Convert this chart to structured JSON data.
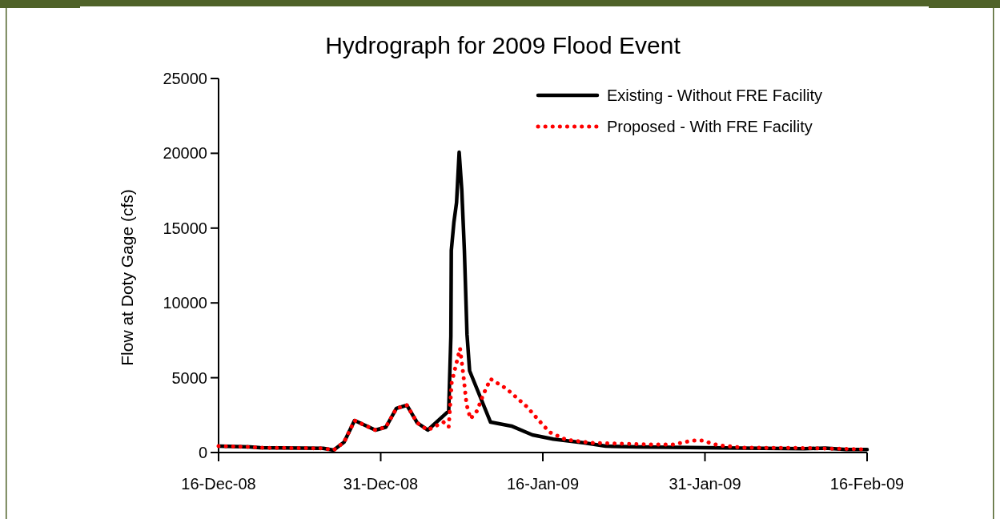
{
  "chart_data": {
    "type": "line",
    "title": "Hydrograph for 2009 Flood Event",
    "ylabel": "Flow at Doty Gage (cfs)",
    "xlim": [
      "2008-12-16",
      "2009-02-16"
    ],
    "xticks": [
      {
        "value": "2008-12-16",
        "label": "16-Dec-08"
      },
      {
        "value": "2008-12-31T12:00",
        "label": "31-Dec-08"
      },
      {
        "value": "2009-01-16",
        "label": "16-Jan-09"
      },
      {
        "value": "2009-01-31T12:00",
        "label": "31-Jan-09"
      },
      {
        "value": "2009-02-16",
        "label": "16-Feb-09"
      }
    ],
    "ylim": [
      0,
      25000
    ],
    "yticks": [
      0,
      5000,
      10000,
      15000,
      20000,
      25000
    ],
    "grid": false,
    "legend": "top right",
    "series": [
      {
        "name": "Existing - Without FRE Facility",
        "color": "#000000",
        "line_style": "solid",
        "x": [
          "2008-12-16",
          "2008-12-19",
          "2008-12-20",
          "2008-12-26",
          "2008-12-27",
          "2008-12-28",
          "2008-12-29",
          "2008-12-31",
          "2009-01-01",
          "2009-01-02",
          "2009-01-03",
          "2009-01-04",
          "2009-01-05",
          "2009-01-07",
          "2009-01-07T05:00",
          "2009-01-07T06:00",
          "2009-01-07T12:00",
          "2009-01-07T18:00",
          "2009-01-08",
          "2009-01-08T06:00",
          "2009-01-08T12:00",
          "2009-01-08T18:00",
          "2009-01-09",
          "2009-01-11",
          "2009-01-13",
          "2009-01-15",
          "2009-01-17",
          "2009-01-20",
          "2009-01-22",
          "2009-01-25",
          "2009-02-04",
          "2009-02-10",
          "2009-02-12",
          "2009-02-14",
          "2009-02-16"
        ],
        "values": [
          430,
          370,
          320,
          280,
          160,
          700,
          2140,
          1500,
          1700,
          2950,
          3160,
          1980,
          1500,
          2780,
          7760,
          13500,
          15400,
          16700,
          20070,
          17560,
          13500,
          7900,
          5460,
          2030,
          1770,
          1180,
          900,
          640,
          430,
          370,
          300,
          250,
          300,
          200,
          200
        ]
      },
      {
        "name": "Proposed - With FRE Facility",
        "color": "#ff0000",
        "line_style": "dotted",
        "x": [
          "2008-12-16",
          "2008-12-19",
          "2008-12-20",
          "2008-12-26",
          "2008-12-27",
          "2008-12-28",
          "2008-12-29",
          "2008-12-31",
          "2009-01-01",
          "2009-01-02",
          "2009-01-03",
          "2009-01-04",
          "2009-01-05",
          "2009-01-06T12:00",
          "2009-01-07",
          "2009-01-07T07:00",
          "2009-01-08T02:00",
          "2009-01-08T10:00",
          "2009-01-08T17:00",
          "2009-01-09T02:00",
          "2009-01-09T17:00",
          "2009-01-10T07:00",
          "2009-01-11",
          "2009-01-12T12:00",
          "2009-01-14T10:00",
          "2009-01-16T02:00",
          "2009-01-16T17:00",
          "2009-01-18T05:00",
          "2009-01-20T17:00",
          "2009-01-23T10:00",
          "2009-01-26",
          "2009-01-28T12:00",
          "2009-01-30T07:00",
          "2009-01-31T05:00",
          "2009-02-01T19:00",
          "2009-02-04T07:00",
          "2009-02-10",
          "2009-02-16"
        ],
        "values": [
          430,
          370,
          320,
          280,
          160,
          700,
          2140,
          1500,
          1700,
          2950,
          3160,
          1980,
          1500,
          2030,
          1710,
          4700,
          6960,
          5090,
          3210,
          2250,
          2780,
          3850,
          4920,
          4280,
          3100,
          1780,
          1340,
          860,
          640,
          590,
          540,
          540,
          800,
          800,
          480,
          320,
          300,
          210
        ]
      }
    ]
  }
}
